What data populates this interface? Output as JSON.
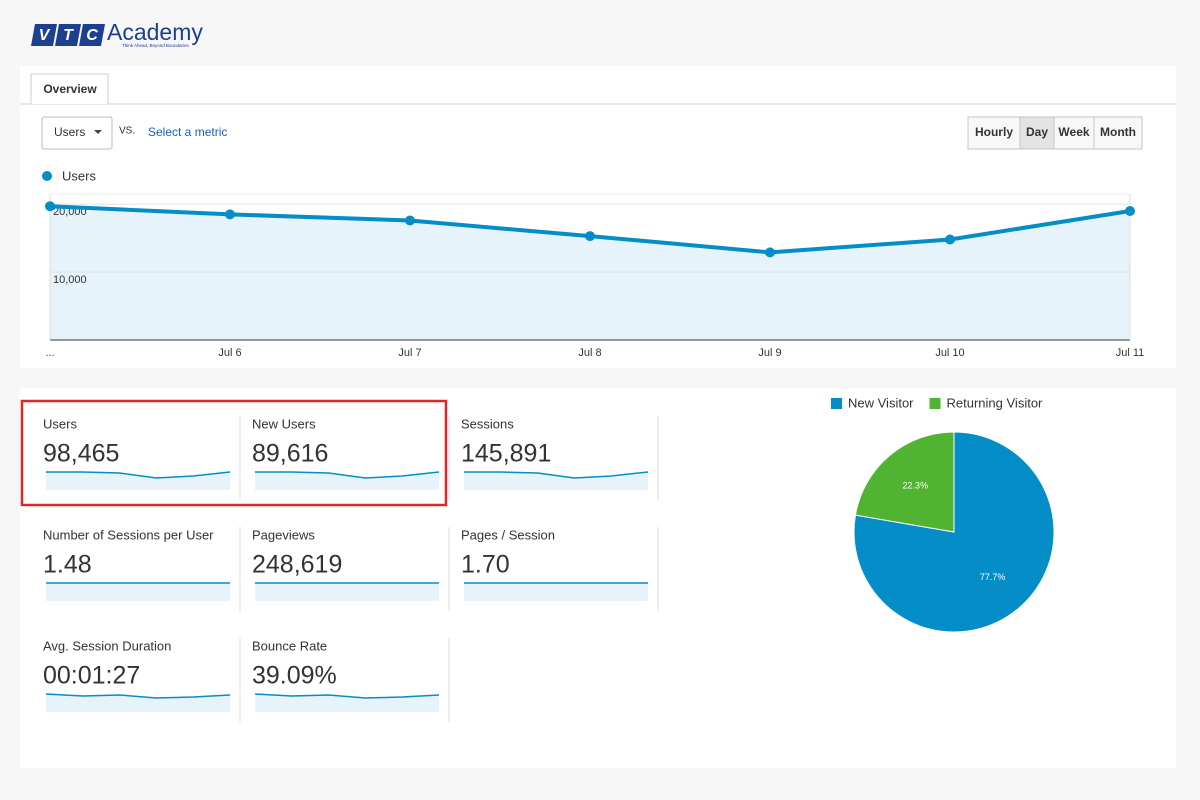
{
  "logo": {
    "letters": [
      "V",
      "T",
      "C"
    ],
    "name": "Academy",
    "tagline": "Think Ahead, Beyond Boundaries"
  },
  "tab": "Overview",
  "metric_select": {
    "selected": "Users",
    "vs": "VS.",
    "link": "Select a metric"
  },
  "period_buttons": [
    {
      "label": "Hourly"
    },
    {
      "label": "Day",
      "selected": true
    },
    {
      "label": "Week"
    },
    {
      "label": "Month"
    }
  ],
  "chart_data": [
    {
      "type": "line",
      "categories": [
        "...",
        "Jul 6",
        "Jul 7",
        "Jul 8",
        "Jul 9",
        "Jul 10",
        "Jul 11"
      ],
      "series": [
        {
          "name": "Users",
          "color": "#058dc7",
          "values": [
            19700,
            18500,
            17600,
            15300,
            12900,
            14800,
            19000
          ]
        }
      ],
      "ylim": [
        0,
        21500
      ],
      "yticks": [
        {
          "value": 10000,
          "label": "10,000"
        },
        {
          "value": 20000,
          "label": "20,000"
        }
      ],
      "grid": true
    },
    {
      "type": "pie",
      "categories": [
        "New Visitor",
        "Returning Visitor"
      ],
      "values": [
        77.7,
        22.3
      ],
      "value_labels": [
        "77.7%",
        "22.3%"
      ],
      "colors": [
        "#058dc7",
        "#50b432"
      ]
    }
  ],
  "metrics": [
    {
      "label": "Users",
      "value": "98,465",
      "highlighted": true
    },
    {
      "label": "New Users",
      "value": "89,616",
      "highlighted": true
    },
    {
      "label": "Sessions",
      "value": "145,891"
    },
    {
      "label": "Number of Sessions per User",
      "value": "1.48"
    },
    {
      "label": "Pageviews",
      "value": "248,619"
    },
    {
      "label": "Pages / Session",
      "value": "1.70"
    },
    {
      "label": "Avg. Session Duration",
      "value": "00:01:27"
    },
    {
      "label": "Bounce Rate",
      "value": "39.09%"
    }
  ]
}
